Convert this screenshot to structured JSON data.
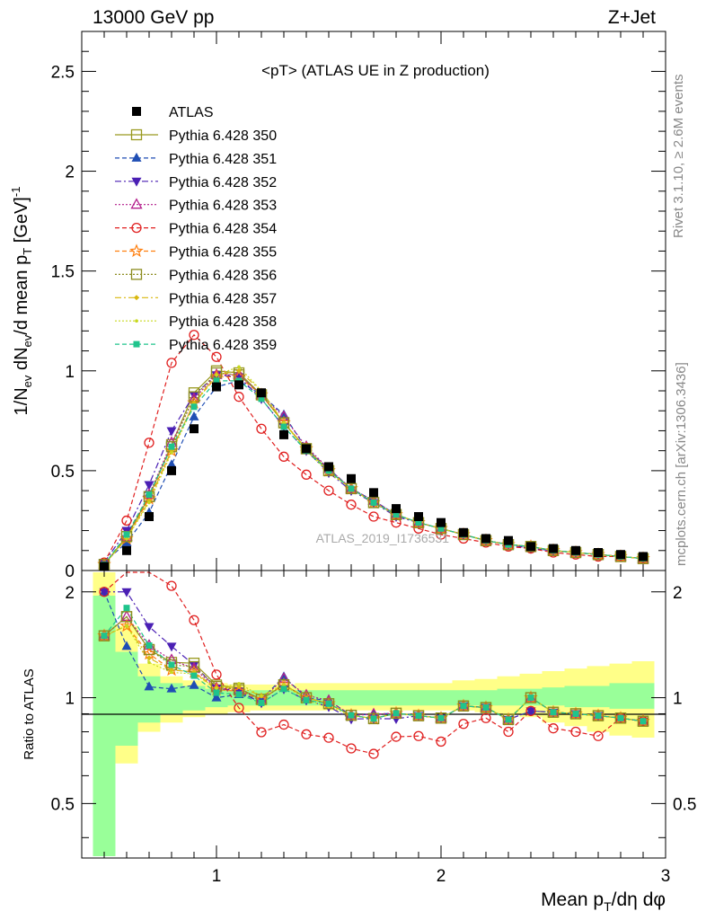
{
  "header": {
    "left": "13000 GeV pp",
    "right": "Z+Jet"
  },
  "side_labels": {
    "rivet": "Rivet 3.1.10, ≥ 2.6M events",
    "mcplots": "mcplots.cern.ch [arXiv:1306.3436]"
  },
  "watermark": "ATLAS_2019_I1736531",
  "chart_data": {
    "type": "line",
    "title": "<pT> (ATLAS UE in Z production)",
    "xlabel": "Mean pT/dη dφ",
    "ylabel": "1/Nev dNev/d mean pT [GeV]^-1",
    "ratio_ylabel": "Ratio to ATLAS",
    "xlim": [
      0.4,
      3.0
    ],
    "ylim": [
      0,
      2.7
    ],
    "ratio_ylim": [
      0.35,
      2.3
    ],
    "x_ticks": [
      1,
      2,
      3
    ],
    "y_ticks": [
      0,
      0.5,
      1,
      1.5,
      2,
      2.5
    ],
    "ratio_ticks": [
      0.5,
      1,
      2
    ],
    "x": [
      0.5,
      0.6,
      0.7,
      0.8,
      0.9,
      1.0,
      1.1,
      1.2,
      1.3,
      1.4,
      1.5,
      1.6,
      1.7,
      1.8,
      1.9,
      2.0,
      2.1,
      2.2,
      2.3,
      2.4,
      2.5,
      2.6,
      2.7,
      2.8,
      2.9
    ],
    "data": {
      "name": "ATLAS",
      "values": [
        0.02,
        0.1,
        0.27,
        0.5,
        0.71,
        0.92,
        0.93,
        0.89,
        0.68,
        0.61,
        0.52,
        0.46,
        0.39,
        0.31,
        0.27,
        0.24,
        0.19,
        0.16,
        0.15,
        0.12,
        0.11,
        0.1,
        0.09,
        0.08,
        0.07
      ]
    },
    "ratio_band": {
      "x_edges": [
        0.45,
        0.55,
        0.65,
        0.75,
        0.85,
        0.95,
        1.05,
        1.15,
        1.25,
        1.35,
        1.45,
        1.55,
        1.65,
        1.75,
        1.85,
        1.95,
        2.05,
        2.15,
        2.25,
        2.35,
        2.45,
        2.55,
        2.65,
        2.75,
        2.85,
        2.95
      ],
      "inner_low": [
        0.3,
        0.73,
        0.85,
        0.9,
        0.92,
        0.94,
        0.95,
        0.95,
        0.95,
        0.95,
        0.95,
        0.95,
        0.95,
        0.95,
        0.95,
        0.95,
        0.95,
        0.95,
        0.95,
        0.95,
        0.95,
        0.94,
        0.94,
        0.93,
        0.93
      ],
      "inner_high": [
        1.95,
        1.35,
        1.15,
        1.1,
        1.08,
        1.06,
        1.05,
        1.05,
        1.05,
        1.05,
        1.05,
        1.05,
        1.05,
        1.05,
        1.05,
        1.05,
        1.05,
        1.05,
        1.06,
        1.06,
        1.07,
        1.08,
        1.08,
        1.1,
        1.1
      ],
      "outer_low": [
        0.3,
        0.65,
        0.8,
        0.85,
        0.88,
        0.9,
        0.91,
        0.92,
        0.92,
        0.92,
        0.92,
        0.92,
        0.92,
        0.92,
        0.92,
        0.92,
        0.92,
        0.91,
        0.9,
        0.88,
        0.85,
        0.83,
        0.8,
        0.78,
        0.77
      ],
      "outer_high": [
        2.3,
        1.6,
        1.25,
        1.15,
        1.12,
        1.1,
        1.09,
        1.09,
        1.09,
        1.1,
        1.1,
        1.1,
        1.1,
        1.1,
        1.1,
        1.1,
        1.12,
        1.13,
        1.15,
        1.17,
        1.19,
        1.21,
        1.23,
        1.25,
        1.27
      ],
      "inner_color": "#99ff99",
      "outer_color": "#ffff88"
    },
    "series": [
      {
        "name": "Pythia 6.428 350",
        "color": "#99991f",
        "marker": "square-open",
        "dash": "solid",
        "values": [
          0.03,
          0.17,
          0.37,
          0.63,
          0.89,
          1.0,
          0.99,
          0.88,
          0.74,
          0.61,
          0.5,
          0.41,
          0.34,
          0.28,
          0.24,
          0.21,
          0.18,
          0.15,
          0.13,
          0.12,
          0.1,
          0.09,
          0.08,
          0.07,
          0.06
        ]
      },
      {
        "name": "Pythia 6.428 351",
        "color": "#1f4eb4",
        "marker": "triangle-up",
        "dash": "dashed",
        "values": [
          0.04,
          0.14,
          0.29,
          0.53,
          0.77,
          0.92,
          0.95,
          0.88,
          0.78,
          0.61,
          0.51,
          0.41,
          0.35,
          0.28,
          0.24,
          0.21,
          0.18,
          0.15,
          0.13,
          0.11,
          0.1,
          0.09,
          0.08,
          0.07,
          0.06
        ]
      },
      {
        "name": "Pythia 6.428 352",
        "color": "#4a1fb4",
        "marker": "triangle-down",
        "dash": "dashdot",
        "values": [
          0.04,
          0.2,
          0.43,
          0.7,
          0.88,
          0.98,
          0.97,
          0.86,
          0.72,
          0.6,
          0.49,
          0.4,
          0.34,
          0.27,
          0.24,
          0.21,
          0.18,
          0.15,
          0.13,
          0.11,
          0.1,
          0.09,
          0.08,
          0.07,
          0.06
        ]
      },
      {
        "name": "Pythia 6.428 353",
        "color": "#b41f8c",
        "marker": "triangle-open",
        "dash": "dotted",
        "values": [
          0.03,
          0.17,
          0.38,
          0.64,
          0.86,
          0.98,
          0.98,
          0.88,
          0.77,
          0.62,
          0.51,
          0.41,
          0.35,
          0.28,
          0.24,
          0.21,
          0.18,
          0.15,
          0.13,
          0.12,
          0.1,
          0.09,
          0.08,
          0.07,
          0.06
        ]
      },
      {
        "name": "Pythia 6.428 354",
        "color": "#e01f1f",
        "marker": "circle-open",
        "dash": "dashed",
        "values": [
          0.04,
          0.25,
          0.64,
          1.04,
          1.18,
          1.07,
          0.87,
          0.71,
          0.57,
          0.48,
          0.4,
          0.33,
          0.27,
          0.24,
          0.21,
          0.18,
          0.16,
          0.14,
          0.12,
          0.11,
          0.09,
          0.08,
          0.07,
          0.07,
          0.06
        ]
      },
      {
        "name": "Pythia 6.428 355",
        "color": "#ff7f0f",
        "marker": "star-open",
        "dash": "dashed",
        "values": [
          0.03,
          0.16,
          0.36,
          0.6,
          0.84,
          0.97,
          0.97,
          0.88,
          0.74,
          0.61,
          0.5,
          0.41,
          0.34,
          0.28,
          0.24,
          0.21,
          0.18,
          0.15,
          0.13,
          0.12,
          0.1,
          0.09,
          0.08,
          0.07,
          0.06
        ]
      },
      {
        "name": "Pythia 6.428 356",
        "color": "#8c8c1f",
        "marker": "square-open",
        "dash": "dotted",
        "values": [
          0.03,
          0.17,
          0.37,
          0.62,
          0.87,
          0.99,
          0.98,
          0.88,
          0.74,
          0.61,
          0.5,
          0.41,
          0.34,
          0.28,
          0.24,
          0.21,
          0.18,
          0.15,
          0.13,
          0.12,
          0.1,
          0.09,
          0.08,
          0.07,
          0.06
        ]
      },
      {
        "name": "Pythia 6.428 357",
        "color": "#d9b80f",
        "marker": "diamond-small",
        "dash": "dashdot",
        "values": [
          0.03,
          0.16,
          0.35,
          0.6,
          0.84,
          0.98,
          1.0,
          0.9,
          0.74,
          0.61,
          0.5,
          0.41,
          0.34,
          0.28,
          0.24,
          0.21,
          0.18,
          0.15,
          0.13,
          0.12,
          0.1,
          0.09,
          0.08,
          0.07,
          0.06
        ]
      },
      {
        "name": "Pythia 6.428 358",
        "color": "#c8d91f",
        "marker": "dot-small",
        "dash": "dotted",
        "values": [
          0.03,
          0.16,
          0.34,
          0.59,
          0.83,
          0.98,
          1.02,
          0.9,
          0.74,
          0.6,
          0.49,
          0.41,
          0.34,
          0.28,
          0.24,
          0.21,
          0.18,
          0.15,
          0.13,
          0.12,
          0.1,
          0.09,
          0.08,
          0.07,
          0.06
        ]
      },
      {
        "name": "Pythia 6.428 359",
        "color": "#1fc48c",
        "marker": "square-small",
        "dash": "dashed",
        "values": [
          0.03,
          0.18,
          0.38,
          0.62,
          0.82,
          0.95,
          0.95,
          0.86,
          0.72,
          0.6,
          0.5,
          0.41,
          0.34,
          0.28,
          0.24,
          0.21,
          0.18,
          0.15,
          0.13,
          0.12,
          0.1,
          0.09,
          0.08,
          0.07,
          0.06
        ]
      }
    ],
    "legend_position": "top-left"
  }
}
